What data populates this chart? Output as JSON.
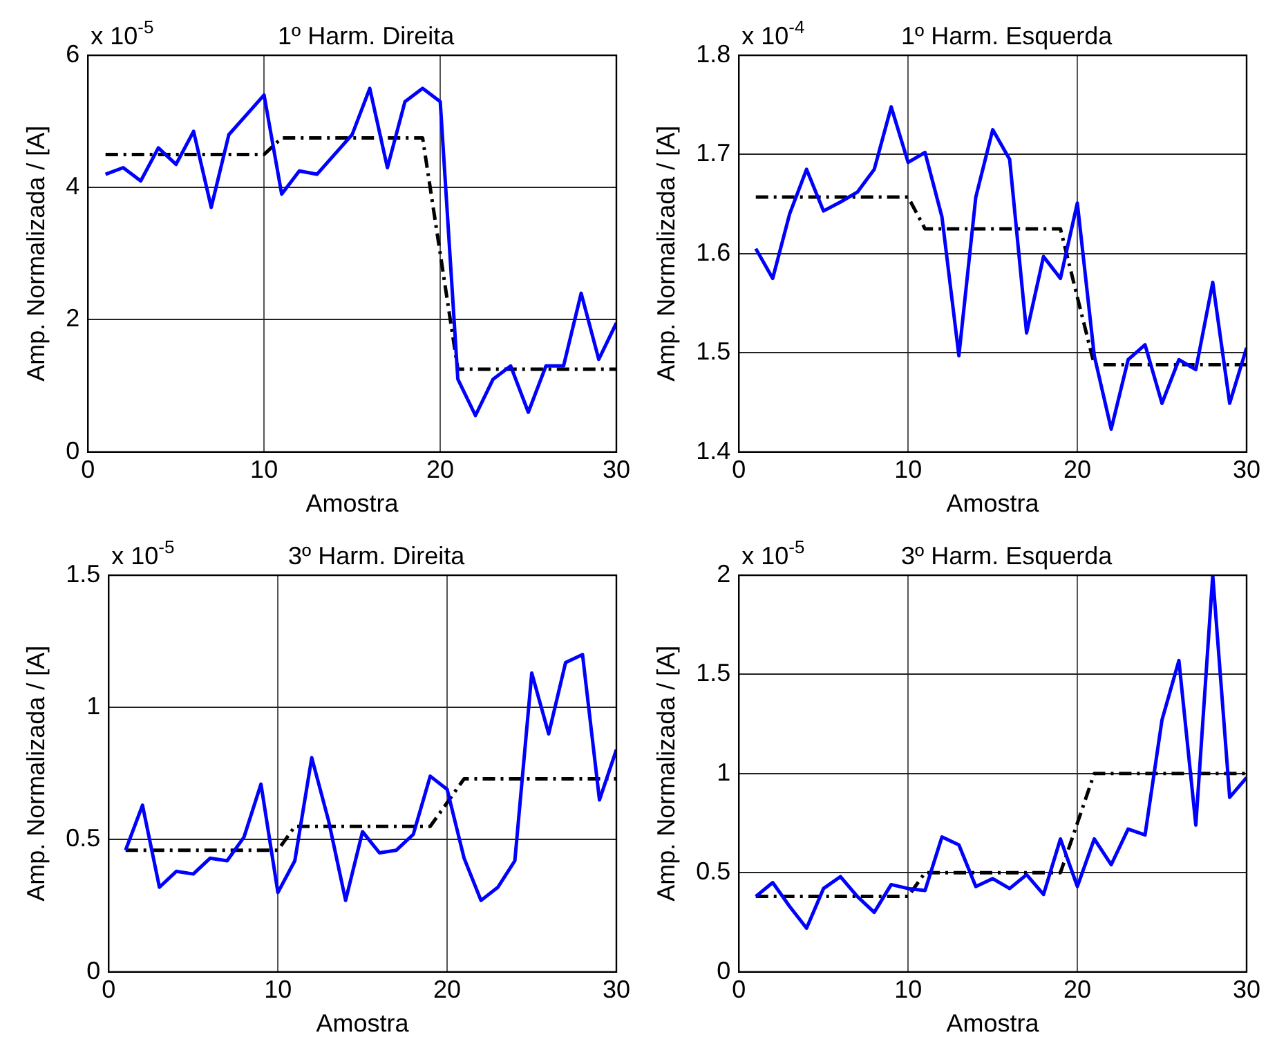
{
  "chart_data": [
    {
      "type": "line",
      "title": "1º Harm. Direita",
      "xlabel": "Amostra",
      "ylabel": "Amp. Normalizada / [A]",
      "annotations": [
        "x 10$^{-5}$"
      ],
      "x": [
        1,
        2,
        3,
        4,
        5,
        6,
        7,
        8,
        9,
        10,
        11,
        12,
        13,
        14,
        15,
        16,
        17,
        18,
        19,
        20,
        21,
        22,
        23,
        24,
        25,
        26,
        27,
        28,
        29,
        30
      ],
      "xlim": [
        0,
        30
      ],
      "xticks": [
        0,
        10,
        20,
        30
      ],
      "ylim": [
        0,
        6
      ],
      "yticks": [
        0,
        2,
        4,
        6
      ],
      "grid": true,
      "marker": "none",
      "series": [
        {
          "color": "#0000ff",
          "line_style": "solid",
          "values": [
            4.2,
            4.3,
            4.1,
            4.6,
            4.35,
            4.85,
            3.7,
            4.8,
            5.1,
            5.4,
            3.9,
            4.25,
            4.2,
            4.5,
            4.8,
            5.5,
            4.3,
            5.3,
            5.5,
            5.3,
            1.1,
            0.55,
            1.1,
            1.3,
            0.6,
            1.3,
            1.3,
            2.4,
            1.4,
            1.95
          ]
        },
        {
          "color": "#000000",
          "line_style": "dashed",
          "values": [
            4.5,
            4.5,
            4.5,
            4.5,
            4.5,
            4.5,
            4.5,
            4.5,
            4.5,
            4.5,
            4.75,
            4.75,
            4.75,
            4.75,
            4.75,
            4.75,
            4.75,
            4.75,
            4.75,
            3.0,
            1.25,
            1.25,
            1.25,
            1.25,
            1.25,
            1.25,
            1.25,
            1.25,
            1.25,
            1.25
          ]
        }
      ]
    },
    {
      "type": "line",
      "title": "1º Harm. Esquerda",
      "xlabel": "Amostra",
      "ylabel": "Amp. Normalizada / [A]",
      "annotations": [
        "x 10$^{-4}$"
      ],
      "x": [
        1,
        2,
        3,
        4,
        5,
        6,
        7,
        8,
        9,
        10,
        11,
        12,
        13,
        14,
        15,
        16,
        17,
        18,
        19,
        20,
        21,
        22,
        23,
        24,
        25,
        26,
        27,
        28,
        29,
        30
      ],
      "xlim": [
        0,
        30
      ],
      "xticks": [
        0,
        10,
        20,
        30
      ],
      "ylim": [
        1.4,
        1.8
      ],
      "yticks": [
        1.4,
        1.5,
        1.6,
        1.7,
        1.8
      ],
      "grid": true,
      "marker": "none",
      "series": [
        {
          "color": "#0000ff",
          "line_style": "solid",
          "values": [
            1.605,
            1.575,
            1.64,
            1.685,
            1.643,
            1.652,
            1.662,
            1.685,
            1.748,
            1.692,
            1.702,
            1.637,
            1.497,
            1.657,
            1.725,
            1.695,
            1.52,
            1.597,
            1.575,
            1.651,
            1.497,
            1.423,
            1.493,
            1.508,
            1.449,
            1.493,
            1.483,
            1.571,
            1.449,
            1.505
          ]
        },
        {
          "color": "#000000",
          "line_style": "dashed",
          "values": [
            1.657,
            1.657,
            1.657,
            1.657,
            1.657,
            1.657,
            1.657,
            1.657,
            1.657,
            1.657,
            1.625,
            1.625,
            1.625,
            1.625,
            1.625,
            1.625,
            1.625,
            1.625,
            1.625,
            1.556,
            1.488,
            1.488,
            1.488,
            1.488,
            1.488,
            1.488,
            1.488,
            1.488,
            1.488,
            1.488
          ]
        }
      ]
    },
    {
      "type": "line",
      "title": "3º Harm. Direita",
      "xlabel": "Amostra",
      "ylabel": "Amp. Normalizada / [A]",
      "annotations": [
        "x 10$^{-5}$"
      ],
      "x": [
        1,
        2,
        3,
        4,
        5,
        6,
        7,
        8,
        9,
        10,
        11,
        12,
        13,
        14,
        15,
        16,
        17,
        18,
        19,
        20,
        21,
        22,
        23,
        24,
        25,
        26,
        27,
        28,
        29,
        30
      ],
      "xlim": [
        0,
        30
      ],
      "xticks": [
        0,
        10,
        20,
        30
      ],
      "ylim": [
        0,
        1.5
      ],
      "yticks": [
        0,
        0.5,
        1,
        1.5
      ],
      "grid": true,
      "marker": "none",
      "series": [
        {
          "color": "#0000ff",
          "line_style": "solid",
          "values": [
            0.46,
            0.63,
            0.32,
            0.38,
            0.37,
            0.43,
            0.42,
            0.51,
            0.71,
            0.3,
            0.42,
            0.81,
            0.57,
            0.27,
            0.53,
            0.45,
            0.46,
            0.52,
            0.74,
            0.69,
            0.43,
            0.27,
            0.32,
            0.42,
            1.13,
            0.9,
            1.17,
            1.2,
            0.65,
            0.84
          ]
        },
        {
          "color": "#000000",
          "line_style": "dashed",
          "values": [
            0.46,
            0.46,
            0.46,
            0.46,
            0.46,
            0.46,
            0.46,
            0.46,
            0.46,
            0.46,
            0.55,
            0.55,
            0.55,
            0.55,
            0.55,
            0.55,
            0.55,
            0.55,
            0.55,
            0.64,
            0.73,
            0.73,
            0.73,
            0.73,
            0.73,
            0.73,
            0.73,
            0.73,
            0.73,
            0.73
          ]
        }
      ]
    },
    {
      "type": "line",
      "title": "3º Harm. Esquerda",
      "xlabel": "Amostra",
      "ylabel": "Amp. Normalizada / [A]",
      "annotations": [
        "x 10$^{-5}$"
      ],
      "x": [
        1,
        2,
        3,
        4,
        5,
        6,
        7,
        8,
        9,
        10,
        11,
        12,
        13,
        14,
        15,
        16,
        17,
        18,
        19,
        20,
        21,
        22,
        23,
        24,
        25,
        26,
        27,
        28,
        29,
        30
      ],
      "xlim": [
        0,
        30
      ],
      "xticks": [
        0,
        10,
        20,
        30
      ],
      "ylim": [
        0,
        2
      ],
      "yticks": [
        0,
        0.5,
        1,
        1.5,
        2
      ],
      "grid": true,
      "marker": "none",
      "series": [
        {
          "color": "#0000ff",
          "line_style": "solid",
          "values": [
            0.38,
            0.45,
            0.33,
            0.22,
            0.42,
            0.48,
            0.38,
            0.3,
            0.44,
            0.42,
            0.41,
            0.68,
            0.64,
            0.43,
            0.47,
            0.42,
            0.49,
            0.39,
            0.67,
            0.43,
            0.67,
            0.54,
            0.72,
            0.69,
            1.27,
            1.57,
            0.74,
            2.0,
            0.88,
            0.98
          ]
        },
        {
          "color": "#000000",
          "line_style": "dashed",
          "values": [
            0.38,
            0.38,
            0.38,
            0.38,
            0.38,
            0.38,
            0.38,
            0.38,
            0.38,
            0.38,
            0.5,
            0.5,
            0.5,
            0.5,
            0.5,
            0.5,
            0.5,
            0.5,
            0.5,
            0.75,
            1.0,
            1.0,
            1.0,
            1.0,
            1.0,
            1.0,
            1.0,
            1.0,
            1.0,
            1.0
          ]
        }
      ]
    }
  ]
}
